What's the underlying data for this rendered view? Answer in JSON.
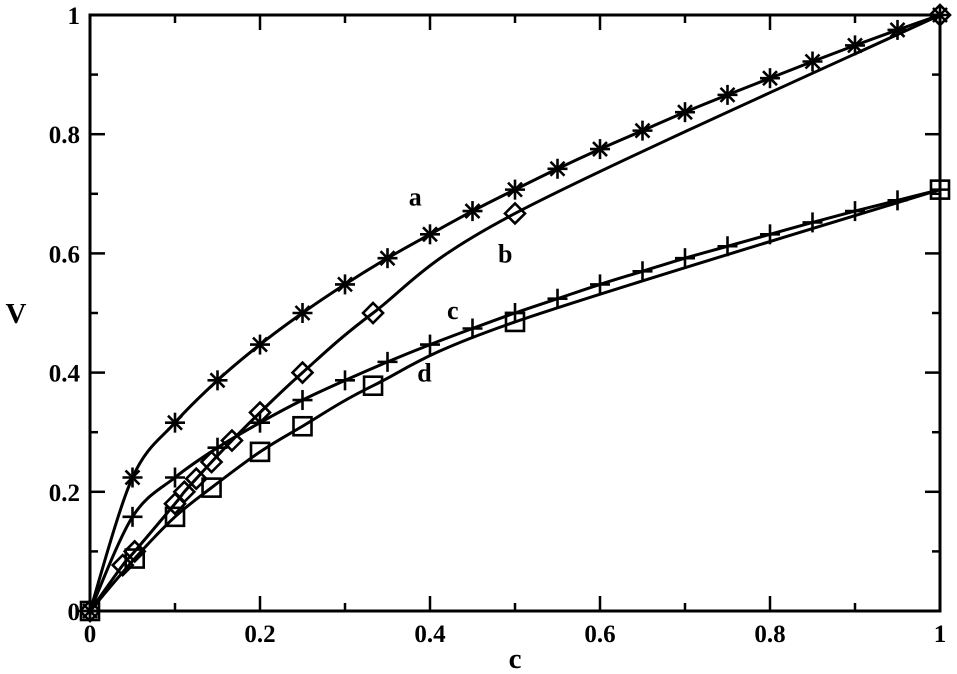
{
  "chart_data": {
    "type": "line",
    "title": "",
    "xlabel": "c",
    "ylabel": "V",
    "xlim": [
      0,
      1
    ],
    "ylim": [
      0,
      1
    ],
    "grid": false,
    "x_ticks": [
      "0",
      "0.2",
      "0.4",
      "0.6",
      "0.8",
      "1"
    ],
    "y_ticks": [
      "0",
      "0.2",
      "0.4",
      "0.6",
      "0.8",
      "1"
    ],
    "curve_labels": [
      {
        "text": "a",
        "x": 0.375,
        "y": 0.68
      },
      {
        "text": "b",
        "x": 0.48,
        "y": 0.585
      },
      {
        "text": "c",
        "x": 0.42,
        "y": 0.49
      },
      {
        "text": "d",
        "x": 0.385,
        "y": 0.385
      }
    ],
    "series": [
      {
        "marker": "asterisk",
        "x": [
          0,
          0.05,
          0.1,
          0.15,
          0.2,
          0.25,
          0.3,
          0.35,
          0.4,
          0.45,
          0.5,
          0.55,
          0.6,
          0.65,
          0.7,
          0.75,
          0.8,
          0.85,
          0.9,
          0.95,
          1.0
        ],
        "values": [
          0,
          0.224,
          0.316,
          0.387,
          0.447,
          0.5,
          0.548,
          0.592,
          0.632,
          0.671,
          0.707,
          0.742,
          0.775,
          0.806,
          0.837,
          0.866,
          0.894,
          0.922,
          0.949,
          0.975,
          1.0
        ]
      },
      {
        "marker": "diamond",
        "x": [
          0,
          0.0385,
          0.0526,
          0.1,
          0.111,
          0.125,
          0.143,
          0.167,
          0.2,
          0.25,
          0.333,
          0.5,
          1.0
        ],
        "values": [
          0,
          0.077,
          0.1,
          0.18,
          0.2,
          0.222,
          0.25,
          0.286,
          0.333,
          0.4,
          0.5,
          0.667,
          1.0
        ]
      },
      {
        "marker": "plus",
        "x": [
          0,
          0.05,
          0.1,
          0.15,
          0.2,
          0.25,
          0.3,
          0.35,
          0.4,
          0.45,
          0.5,
          0.55,
          0.6,
          0.65,
          0.7,
          0.75,
          0.8,
          0.85,
          0.9,
          0.95,
          1.0
        ],
        "values": [
          0,
          0.158,
          0.224,
          0.274,
          0.316,
          0.354,
          0.387,
          0.418,
          0.447,
          0.474,
          0.5,
          0.524,
          0.548,
          0.57,
          0.592,
          0.612,
          0.632,
          0.652,
          0.671,
          0.689,
          0.707
        ]
      },
      {
        "marker": "square",
        "x": [
          0,
          0.0526,
          0.1,
          0.143,
          0.2,
          0.25,
          0.333,
          0.5,
          1.0
        ],
        "values": [
          0,
          0.088,
          0.158,
          0.207,
          0.267,
          0.31,
          0.378,
          0.485,
          0.707
        ]
      }
    ]
  }
}
